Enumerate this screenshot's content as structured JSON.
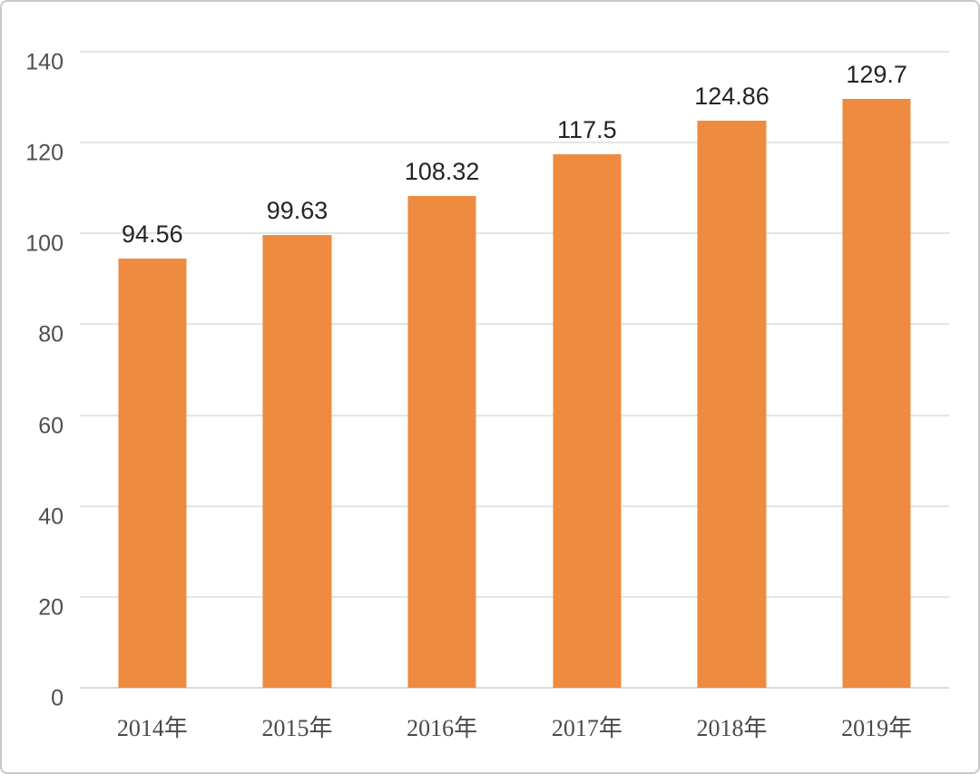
{
  "chart_data": {
    "type": "bar",
    "title": "",
    "xlabel": "",
    "ylabel": "",
    "categories": [
      "2014年",
      "2015年",
      "2016年",
      "2017年",
      "2018年",
      "2019年"
    ],
    "values": [
      94.56,
      99.63,
      108.32,
      117.5,
      124.86,
      129.7
    ],
    "value_labels": [
      "94.56",
      "99.63",
      "108.32",
      "117.5",
      "124.86",
      "129.7"
    ],
    "ylim": [
      0,
      140
    ],
    "yticks": [
      0,
      20,
      40,
      60,
      80,
      100,
      120,
      140
    ],
    "grid": true,
    "legend_position": "none",
    "bar_color": "#ee8b40",
    "gridline_color": "#e4e5e6",
    "axis_line_color": "#d9dadb",
    "value_label_color": "#242424",
    "ytick_label_color": "#4f4f4f",
    "xtick_label_color": "#4a4a4a",
    "frame_border_color": "#c9c9c9",
    "background_color": "#ffffff"
  }
}
